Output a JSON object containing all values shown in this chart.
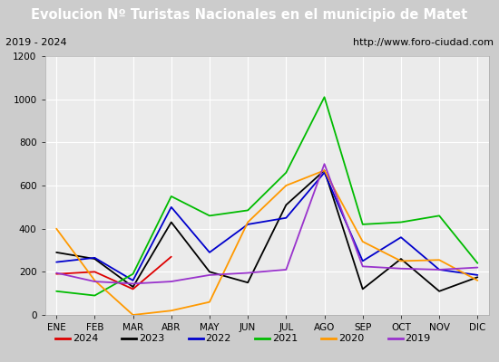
{
  "title": "Evolucion Nº Turistas Nacionales en el municipio de Matet",
  "subtitle_left": "2019 - 2024",
  "subtitle_right": "http://www.foro-ciudad.com",
  "months": [
    "ENE",
    "FEB",
    "MAR",
    "ABR",
    "MAY",
    "JUN",
    "JUL",
    "AGO",
    "SEP",
    "OCT",
    "NOV",
    "DIC"
  ],
  "series": {
    "2024": [
      190,
      200,
      120,
      270,
      null,
      null,
      null,
      null,
      null,
      null,
      null,
      null
    ],
    "2023": [
      290,
      260,
      130,
      430,
      200,
      150,
      510,
      670,
      120,
      260,
      110,
      175
    ],
    "2022": [
      245,
      265,
      160,
      500,
      290,
      420,
      450,
      660,
      250,
      360,
      210,
      185
    ],
    "2021": [
      110,
      90,
      190,
      550,
      460,
      485,
      660,
      1010,
      420,
      430,
      460,
      240
    ],
    "2020": [
      400,
      160,
      0,
      20,
      60,
      430,
      600,
      670,
      340,
      250,
      255,
      160
    ],
    "2019": [
      195,
      155,
      145,
      155,
      185,
      195,
      210,
      700,
      225,
      215,
      210,
      220
    ]
  },
  "colors": {
    "2024": "#dd0000",
    "2023": "#000000",
    "2022": "#0000cc",
    "2021": "#00bb00",
    "2020": "#ff9900",
    "2019": "#9933cc"
  },
  "ylim": [
    0,
    1200
  ],
  "yticks": [
    0,
    200,
    400,
    600,
    800,
    1000,
    1200
  ],
  "title_bg": "#4a90d9",
  "title_color": "#ffffff",
  "plot_bg": "#ebebeb",
  "grid_color": "#ffffff",
  "outer_bg": "#cccccc",
  "title_fontsize": 10.5,
  "legend_fontsize": 8,
  "axis_fontsize": 7.5
}
